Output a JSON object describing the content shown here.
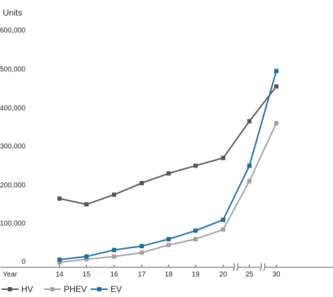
{
  "chart_data": {
    "type": "line",
    "ylabel": "Units",
    "xlabel": "Year",
    "categories": [
      "14",
      "15",
      "16",
      "17",
      "18",
      "19",
      "20",
      "25",
      "30"
    ],
    "axis_breaks_after": [
      "20",
      "25"
    ],
    "ylim": [
      0,
      600000
    ],
    "yticks": [
      0,
      100000,
      200000,
      300000,
      400000,
      500000,
      600000
    ],
    "ytick_labels": [
      "0",
      "100,000",
      "200,000",
      "300,000",
      "400,000",
      "500,000",
      "600,000"
    ],
    "grid": false,
    "legend_position": "bottom-left",
    "series": [
      {
        "name": "HV",
        "color": "#555555",
        "marker": "square",
        "values": [
          165000,
          150000,
          175000,
          205000,
          230000,
          250000,
          270000,
          365000,
          455000
        ]
      },
      {
        "name": "PHEV",
        "color": "#a0a0a0",
        "marker": "square",
        "values": [
          0,
          8000,
          15000,
          25000,
          45000,
          60000,
          85000,
          210000,
          360000
        ]
      },
      {
        "name": "EV",
        "color": "#1a6ba0",
        "marker": "square",
        "values": [
          7000,
          15000,
          32000,
          42000,
          60000,
          82000,
          110000,
          250000,
          495000
        ]
      }
    ]
  }
}
